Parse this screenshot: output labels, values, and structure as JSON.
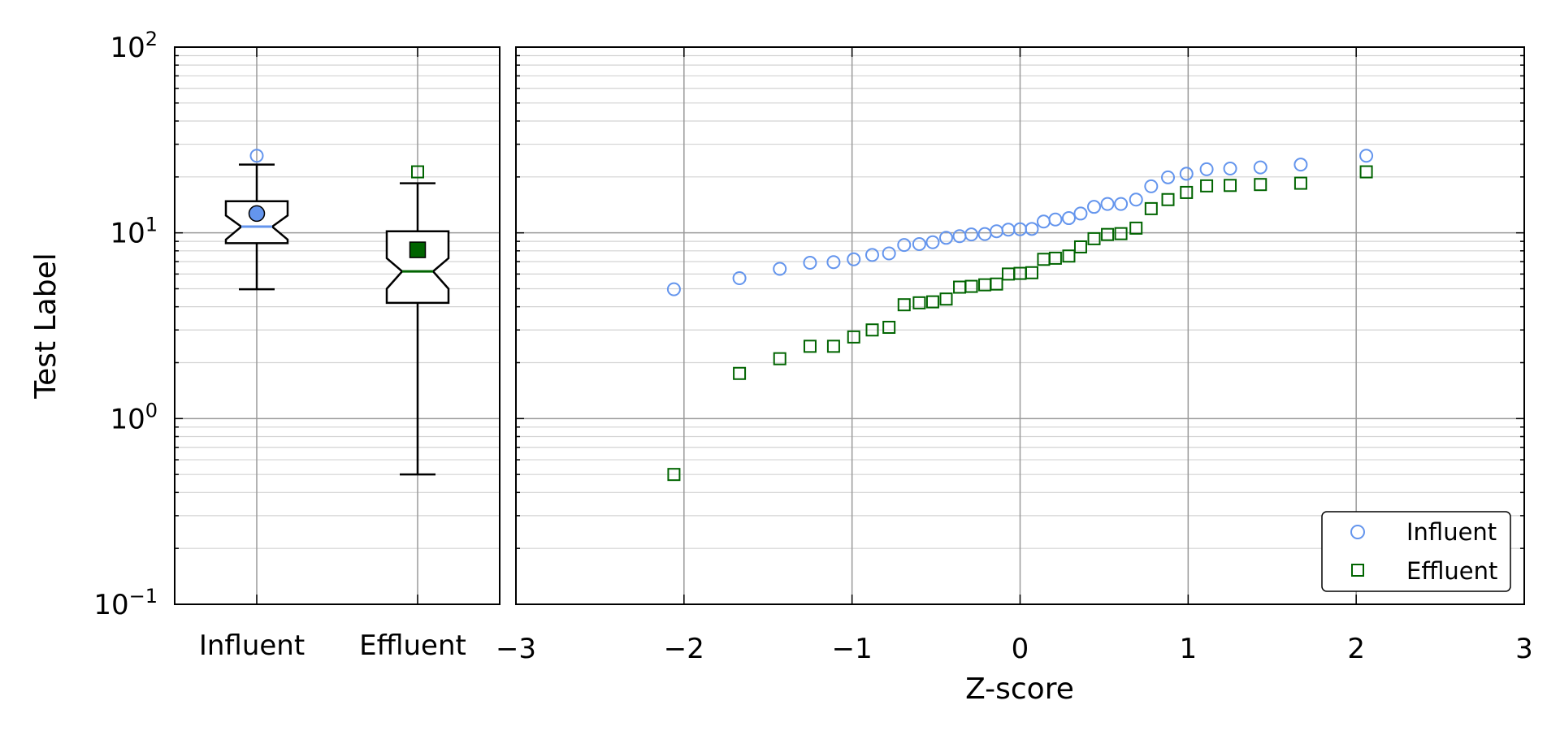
{
  "chart_data": [
    {
      "type": "box",
      "ylabel": "Test Label",
      "yscale": "log",
      "ylim": [
        0.1,
        100
      ],
      "grid": true,
      "categories": [
        "Influent",
        "Effluent"
      ],
      "boxes": [
        {
          "name": "Influent",
          "color": "#6495ED",
          "marker": "circle",
          "q1": 8.8,
          "median": 10.8,
          "q3": 14.8,
          "notch_low": 9.2,
          "notch_high": 12.4,
          "whisker_low": 4.97,
          "whisker_high": 23.3,
          "mean": 12.7,
          "outliers": [
            26.0
          ]
        },
        {
          "name": "Effluent",
          "color": "#006400",
          "marker": "square",
          "q1": 4.2,
          "median": 6.2,
          "q3": 10.2,
          "notch_low": 5.0,
          "notch_high": 7.3,
          "whisker_low": 0.5,
          "whisker_high": 18.5,
          "mean": 8.1,
          "outliers": [
            21.3
          ]
        }
      ]
    },
    {
      "type": "scatter",
      "xlabel": "Z-score",
      "yscale": "log",
      "xlim": [
        -3,
        3
      ],
      "ylim": [
        0.1,
        100
      ],
      "grid": true,
      "legend_position": "lower-right",
      "series": [
        {
          "name": "Influent",
          "color": "#6495ED",
          "marker": "circle",
          "points": [
            [
              -2.06,
              4.97
            ],
            [
              -1.67,
              5.7
            ],
            [
              -1.43,
              6.4
            ],
            [
              -1.25,
              6.9
            ],
            [
              -1.11,
              6.95
            ],
            [
              -0.99,
              7.2
            ],
            [
              -0.88,
              7.6
            ],
            [
              -0.78,
              7.75
            ],
            [
              -0.69,
              8.6
            ],
            [
              -0.6,
              8.7
            ],
            [
              -0.52,
              8.9
            ],
            [
              -0.44,
              9.4
            ],
            [
              -0.36,
              9.6
            ],
            [
              -0.29,
              9.8
            ],
            [
              -0.21,
              9.85
            ],
            [
              -0.14,
              10.2
            ],
            [
              -0.07,
              10.4
            ],
            [
              0.0,
              10.45
            ],
            [
              0.07,
              10.5
            ],
            [
              0.14,
              11.5
            ],
            [
              0.21,
              11.8
            ],
            [
              0.29,
              12.0
            ],
            [
              0.36,
              12.7
            ],
            [
              0.44,
              13.8
            ],
            [
              0.52,
              14.3
            ],
            [
              0.6,
              14.3
            ],
            [
              0.69,
              15.1
            ],
            [
              0.78,
              17.8
            ],
            [
              0.88,
              19.9
            ],
            [
              0.99,
              20.8
            ],
            [
              1.11,
              22.0
            ],
            [
              1.25,
              22.2
            ],
            [
              1.43,
              22.5
            ],
            [
              1.67,
              23.3
            ],
            [
              2.06,
              26.0
            ]
          ]
        },
        {
          "name": "Effluent",
          "color": "#006400",
          "marker": "square",
          "points": [
            [
              -2.06,
              0.5
            ],
            [
              -1.67,
              1.75
            ],
            [
              -1.43,
              2.1
            ],
            [
              -1.25,
              2.45
            ],
            [
              -1.11,
              2.45
            ],
            [
              -0.99,
              2.75
            ],
            [
              -0.88,
              3.0
            ],
            [
              -0.78,
              3.1
            ],
            [
              -0.69,
              4.1
            ],
            [
              -0.6,
              4.2
            ],
            [
              -0.52,
              4.25
            ],
            [
              -0.44,
              4.4
            ],
            [
              -0.36,
              5.1
            ],
            [
              -0.29,
              5.15
            ],
            [
              -0.21,
              5.25
            ],
            [
              -0.14,
              5.3
            ],
            [
              -0.07,
              6.0
            ],
            [
              0.0,
              6.05
            ],
            [
              0.07,
              6.1
            ],
            [
              0.14,
              7.2
            ],
            [
              0.21,
              7.3
            ],
            [
              0.29,
              7.5
            ],
            [
              0.36,
              8.4
            ],
            [
              0.44,
              9.3
            ],
            [
              0.52,
              9.8
            ],
            [
              0.6,
              9.9
            ],
            [
              0.69,
              10.6
            ],
            [
              0.78,
              13.5
            ],
            [
              0.88,
              15.1
            ],
            [
              0.99,
              16.5
            ],
            [
              1.11,
              17.9
            ],
            [
              1.25,
              18.0
            ],
            [
              1.43,
              18.2
            ],
            [
              1.67,
              18.5
            ],
            [
              2.06,
              21.3
            ]
          ]
        }
      ]
    }
  ]
}
